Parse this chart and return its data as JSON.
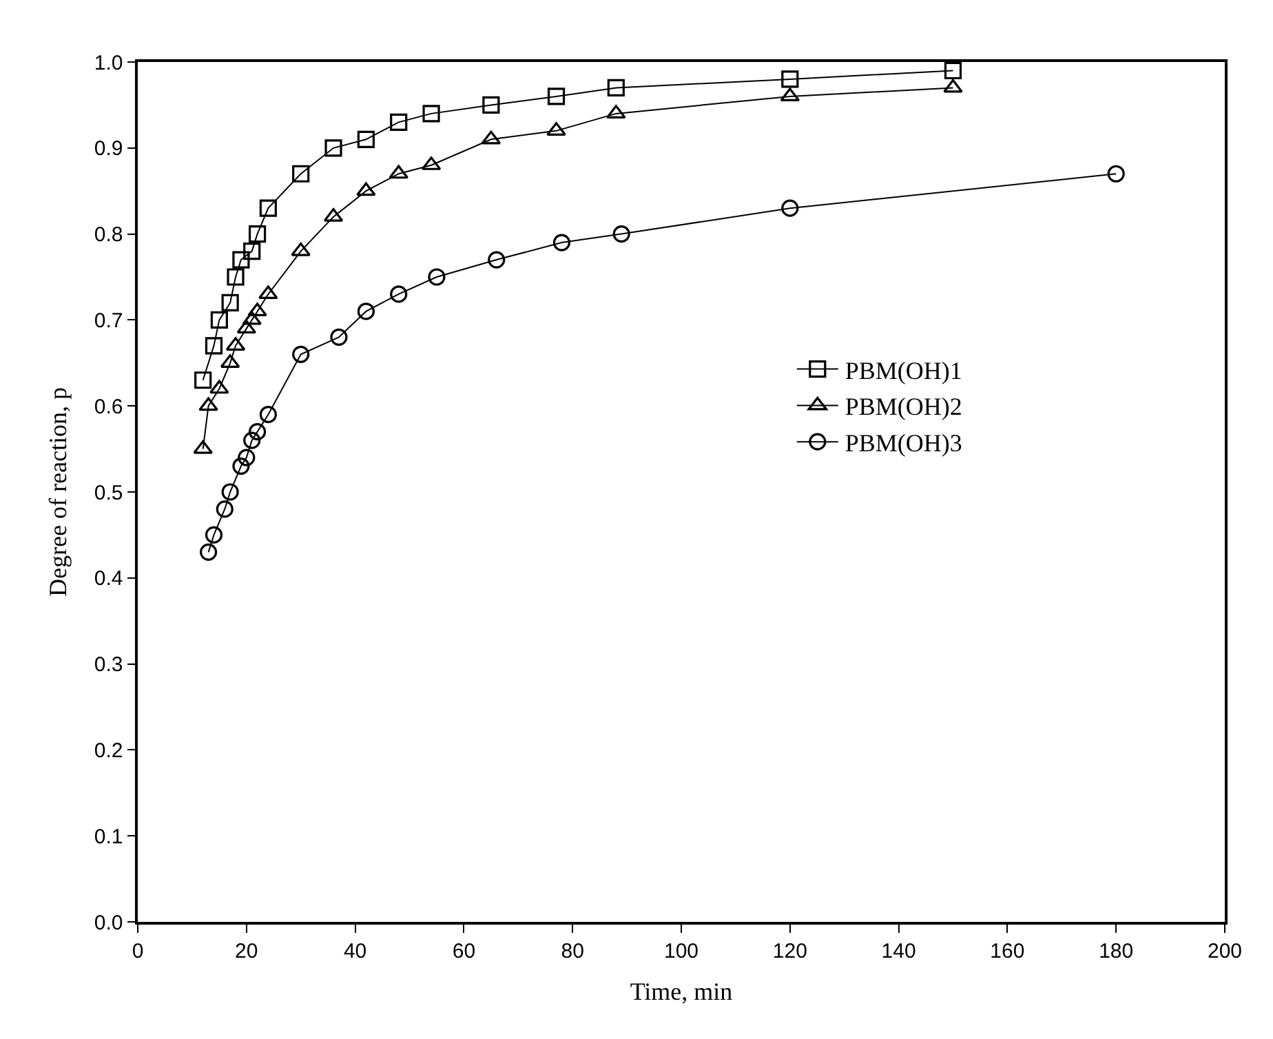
{
  "chart_data": {
    "type": "line",
    "xlabel": "Time, min",
    "ylabel": "Degree of reaction, p",
    "xlim": [
      0,
      200
    ],
    "xticks": [
      0,
      20,
      40,
      60,
      80,
      100,
      120,
      140,
      160,
      180,
      200
    ],
    "ylim": [
      0,
      1
    ],
    "yticks": [
      {
        "value": 0,
        "label": "0.0"
      },
      0.1,
      0.2,
      0.3,
      0.4,
      0.5,
      0.6,
      0.7,
      0.8,
      0.9,
      {
        "value": 1,
        "label": "1.0"
      }
    ],
    "legend": "right",
    "line_style": "solid",
    "series": [
      {
        "name": "PBM(OH)1",
        "color": "#000000",
        "marker": "square",
        "x": [
          12,
          14,
          15,
          17,
          18,
          19,
          21,
          22,
          24,
          30,
          36,
          42,
          48,
          54,
          65,
          77,
          88,
          120,
          150
        ],
        "values": [
          0.63,
          0.67,
          0.7,
          0.72,
          0.75,
          0.77,
          0.78,
          0.8,
          0.83,
          0.87,
          0.9,
          0.91,
          0.93,
          0.94,
          0.95,
          0.96,
          0.97,
          0.98,
          0.99
        ]
      },
      {
        "name": "PBM(OH)2",
        "color": "#000000",
        "marker": "triangle",
        "x": [
          12,
          13,
          15,
          17,
          18,
          20,
          21,
          22,
          24,
          30,
          36,
          42,
          48,
          54,
          65,
          77,
          88,
          120,
          150
        ],
        "values": [
          0.55,
          0.6,
          0.62,
          0.65,
          0.67,
          0.69,
          0.7,
          0.71,
          0.73,
          0.78,
          0.82,
          0.85,
          0.87,
          0.88,
          0.91,
          0.92,
          0.94,
          0.96,
          0.97
        ]
      },
      {
        "name": "PBM(OH)3",
        "color": "#000000",
        "marker": "circle",
        "x": [
          13,
          14,
          16,
          17,
          19,
          20,
          21,
          22,
          24,
          30,
          37,
          42,
          48,
          55,
          66,
          78,
          89,
          120,
          180
        ],
        "values": [
          0.43,
          0.45,
          0.48,
          0.5,
          0.53,
          0.54,
          0.56,
          0.57,
          0.59,
          0.66,
          0.68,
          0.71,
          0.73,
          0.75,
          0.77,
          0.79,
          0.8,
          0.83,
          0.87
        ]
      }
    ]
  }
}
